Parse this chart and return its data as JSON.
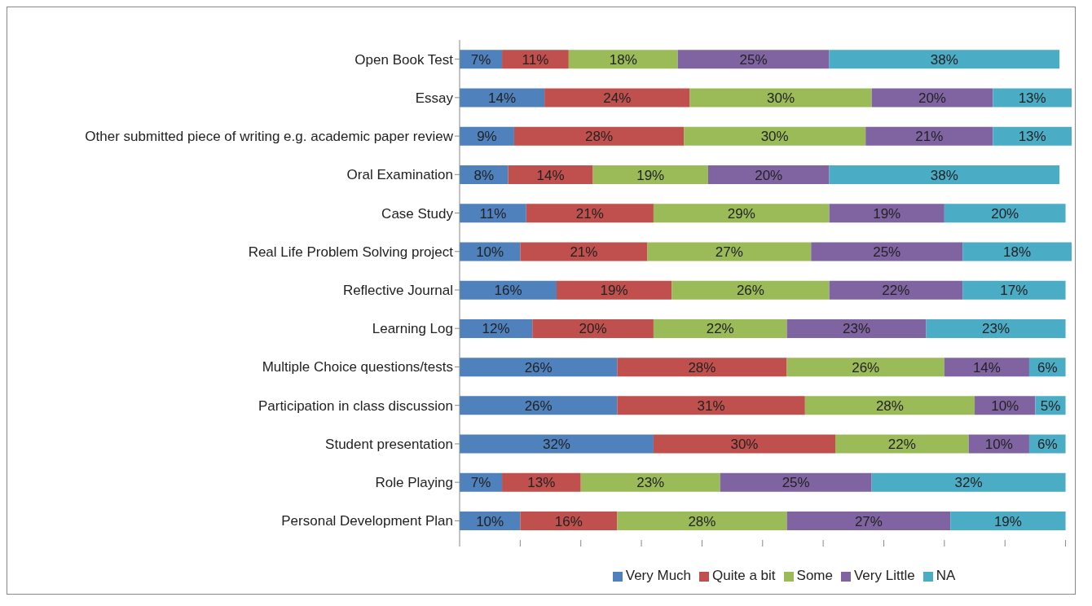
{
  "chart_data": {
    "type": "bar",
    "orientation": "horizontal",
    "stacked": true,
    "categories": [
      "Open Book Test",
      "Essay",
      "Other submitted piece of writing e.g. academic paper review",
      "Oral Examination",
      "Case Study",
      "Real Life Problem Solving project",
      "Reflective Journal",
      "Learning Log",
      "Multiple Choice questions/tests",
      "Participation in class discussion",
      "Student presentation",
      "Role Playing",
      "Personal Development Plan"
    ],
    "series": [
      {
        "name": "Very Much",
        "color": "#4f81bd",
        "values": [
          7,
          14,
          9,
          8,
          11,
          10,
          16,
          12,
          26,
          26,
          32,
          7,
          10
        ],
        "value_labels": [
          "7%",
          "14%",
          "9%",
          "8%",
          "11%",
          "10%",
          "16%",
          "12%",
          "26%",
          "26%",
          "32%",
          "7%",
          "10%"
        ]
      },
      {
        "name": "Quite a bit",
        "color": "#c0504d",
        "values": [
          11,
          24,
          28,
          14,
          21,
          21,
          19,
          20,
          28,
          31,
          30,
          13,
          16
        ],
        "value_labels": [
          "11%",
          "24%",
          "28%",
          "14%",
          "21%",
          "21%",
          "19%",
          "20%",
          "28%",
          "31%",
          "30%",
          "13%",
          "16%"
        ]
      },
      {
        "name": "Some",
        "color": "#9bbb59",
        "values": [
          18,
          30,
          30,
          19,
          29,
          27,
          26,
          22,
          26,
          28,
          22,
          23,
          28
        ],
        "value_labels": [
          "18%",
          "30%",
          "30%",
          "19%",
          "29%",
          "27%",
          "26%",
          "22%",
          "26%",
          "28%",
          "22%",
          "23%",
          "28%"
        ]
      },
      {
        "name": "Very Little",
        "color": "#8064a2",
        "values": [
          25,
          20,
          21,
          20,
          19,
          25,
          22,
          23,
          14,
          10,
          10,
          25,
          27
        ],
        "value_labels": [
          "25%",
          "20%",
          "21%",
          "20%",
          "19%",
          "25%",
          "22%",
          "23%",
          "14%",
          "10%",
          "10%",
          "25%",
          "27%"
        ]
      },
      {
        "name": "NA",
        "color": "#4bacc6",
        "values": [
          38,
          13,
          13,
          38,
          20,
          18,
          17,
          23,
          6,
          5,
          6,
          32,
          19
        ],
        "value_labels": [
          "38%",
          "13%",
          "13%",
          "38%",
          "20%",
          "18%",
          "17%",
          "23%",
          "6%",
          "5%",
          "6%",
          "32%",
          "19%"
        ]
      }
    ],
    "xlim": [
      0,
      101
    ],
    "xticks": [
      {
        "value": 0,
        "label": null
      },
      {
        "value": 10,
        "label": null
      },
      {
        "value": 20,
        "label": null
      },
      {
        "value": 30,
        "label": null
      },
      {
        "value": 40,
        "label": null
      },
      {
        "value": 50,
        "label": null
      },
      {
        "value": 60,
        "label": null
      },
      {
        "value": 70,
        "label": null
      },
      {
        "value": 80,
        "label": null
      },
      {
        "value": 90,
        "label": null
      },
      {
        "value": 100,
        "label": null
      }
    ],
    "tick_labels": "y",
    "grid": false,
    "legend": "bottom"
  }
}
